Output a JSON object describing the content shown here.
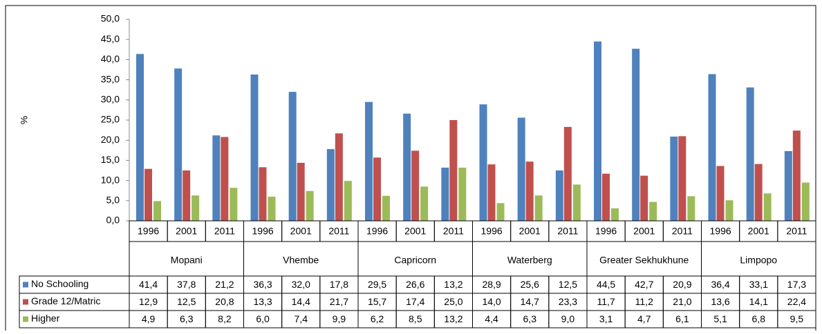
{
  "chart_data": {
    "type": "bar",
    "ylabel": "%",
    "categories": [
      "1996",
      "2001",
      "2011",
      "1996",
      "2001",
      "2011",
      "1996",
      "2001",
      "2011",
      "1996",
      "2001",
      "2011",
      "1996",
      "2001",
      "2011",
      "1996",
      "2001",
      "2011"
    ],
    "groups": [
      "Mopani",
      "Vhembe",
      "Capricorn",
      "Waterberg",
      "Greater Sekhukhune",
      "Limpopo"
    ],
    "series": [
      {
        "name": "No Schooling",
        "color": "#4f81bd",
        "values": [
          41.4,
          37.8,
          21.2,
          36.3,
          32.0,
          17.8,
          29.5,
          26.6,
          13.2,
          28.9,
          25.6,
          12.5,
          44.5,
          42.7,
          20.9,
          36.4,
          33.1,
          17.3
        ],
        "value_labels": [
          "41,4",
          "37,8",
          "21,2",
          "36,3",
          "32,0",
          "17,8",
          "29,5",
          "26,6",
          "13,2",
          "28,9",
          "25,6",
          "12,5",
          "44,5",
          "42,7",
          "20,9",
          "36,4",
          "33,1",
          "17,3"
        ]
      },
      {
        "name": "Grade 12/Matric",
        "color": "#c0504d",
        "values": [
          12.9,
          12.5,
          20.8,
          13.3,
          14.4,
          21.7,
          15.7,
          17.4,
          25.0,
          14.0,
          14.7,
          23.3,
          11.7,
          11.2,
          21.0,
          13.6,
          14.1,
          22.4
        ],
        "value_labels": [
          "12,9",
          "12,5",
          "20,8",
          "13,3",
          "14,4",
          "21,7",
          "15,7",
          "17,4",
          "25,0",
          "14,0",
          "14,7",
          "23,3",
          "11,7",
          "11,2",
          "21,0",
          "13,6",
          "14,1",
          "22,4"
        ]
      },
      {
        "name": "Higher",
        "color": "#9bbb59",
        "values": [
          4.9,
          6.3,
          8.2,
          6.0,
          7.4,
          9.9,
          6.2,
          8.5,
          13.2,
          4.4,
          6.3,
          9.0,
          3.1,
          4.7,
          6.1,
          5.1,
          6.8,
          9.5
        ],
        "value_labels": [
          "4,9",
          "6,3",
          "8,2",
          "6,0",
          "7,4",
          "9,9",
          "6,2",
          "8,5",
          "13,2",
          "4,4",
          "6,3",
          "9,0",
          "3,1",
          "4,7",
          "6,1",
          "5,1",
          "6,8",
          "9,5"
        ]
      }
    ],
    "ylim": [
      0,
      50
    ],
    "yticks": [
      {
        "value": 0,
        "label": "0,0"
      },
      {
        "value": 5,
        "label": "5,0"
      },
      {
        "value": 10,
        "label": "10,0"
      },
      {
        "value": 15,
        "label": "15,0"
      },
      {
        "value": 20,
        "label": "20,0"
      },
      {
        "value": 25,
        "label": "25,0"
      },
      {
        "value": 30,
        "label": "30,0"
      },
      {
        "value": 35,
        "label": "35,0"
      },
      {
        "value": 40,
        "label": "40,0"
      },
      {
        "value": 45,
        "label": "45,0"
      },
      {
        "value": 50,
        "label": "50,0"
      }
    ],
    "grid": false
  }
}
